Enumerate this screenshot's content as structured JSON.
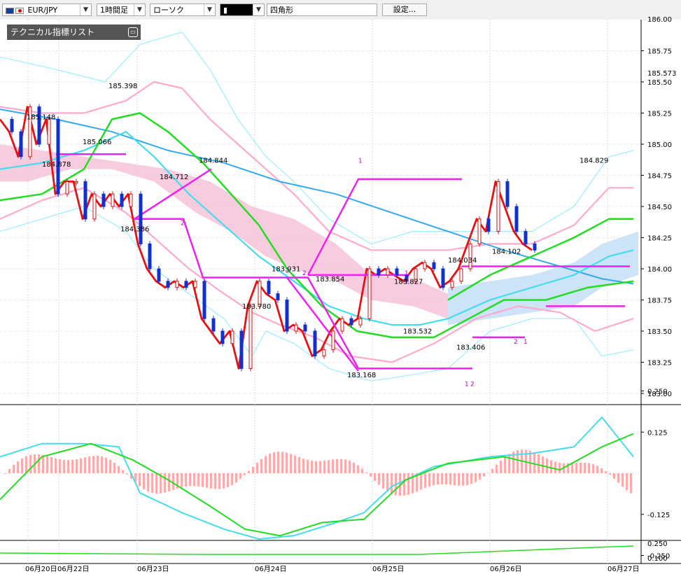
{
  "toolbar": {
    "symbol": "EUR/JPY",
    "timeframe": "1時間足",
    "chart_style": "ローソク",
    "drawing_tool": "四角形",
    "settings_label": "設定..."
  },
  "indicator_list": {
    "label": "テクニカル指標リスト"
  },
  "icons": {
    "symbol_flags": "eu-jp-flag-icon",
    "dropdown": "chevron-down-icon",
    "minimize": "minimize-icon"
  },
  "colors": {
    "price_line": "#e81010",
    "ma_green": "#22dd22",
    "ma_cyan": "#44ddee",
    "ma_blue": "#33aaee",
    "bollinger_outer": "#99eeff",
    "bollinger_inner": "#ffaacc",
    "zigzag": "#ee22ee",
    "cloud_pink": "#f7c6dc",
    "cloud_blue": "#c6e0f7",
    "candle_up": "#d01010",
    "candle_down": "#1030d0",
    "macd_hist": "#ffaaaa"
  },
  "chart_data": {
    "type": "line",
    "symbol": "EUR/JPY",
    "timeframe": "1時間足",
    "y_axis_ticks": [
      "185.75",
      "185.50",
      "185.25",
      "185.00",
      "184.75",
      "184.50",
      "184.25",
      "184.00",
      "183.75",
      "183.50",
      "183.25",
      "183.00"
    ],
    "y_axis_top_partial": "186.00",
    "current_price_marker": "185.573",
    "ylim": [
      183.0,
      186.0
    ],
    "x_axis_labels": [
      "06月20日",
      "06月22日",
      "06月23日",
      "06月24日",
      "06月25日",
      "06月26日",
      "06月27日"
    ],
    "price_annotations": [
      "185.398",
      "185.148",
      "185.066",
      "184.878",
      "184.844",
      "184.712",
      "184.386",
      "183.931",
      "183.780",
      "183.854",
      "183.827",
      "183.532",
      "183.168",
      "184.034",
      "184.102",
      "183.406",
      "184.829"
    ],
    "zigzag_labels": [
      "1",
      "2",
      "2",
      "2",
      "2",
      "1",
      "2",
      "1",
      "2",
      "1"
    ],
    "price_series": {
      "name": "",
      "values": [
        185.2,
        185.1,
        184.9,
        185.3,
        185.0,
        185.2,
        184.6,
        184.7,
        184.7,
        184.4,
        184.6,
        184.5,
        184.6,
        184.5,
        184.6,
        184.2,
        184.0,
        183.9,
        183.85,
        183.9,
        183.85,
        183.9,
        183.6,
        183.5,
        183.4,
        183.5,
        183.2,
        183.7,
        183.9,
        183.8,
        183.75,
        183.5,
        183.55,
        183.5,
        183.3,
        183.35,
        183.5,
        183.6,
        183.55,
        183.6,
        184.0,
        183.95,
        184.0,
        183.95,
        183.9,
        184.0,
        184.05,
        184.0,
        183.85,
        183.9,
        184.0,
        184.2,
        184.4,
        184.3,
        184.7,
        184.5,
        184.3,
        184.2,
        184.15
      ]
    },
    "zigzag_series": {
      "name": "",
      "values": [
        184.4,
        184.8,
        184.4,
        183.9,
        183.9,
        183.95,
        183.2,
        184.7,
        183.95,
        184.05
      ]
    },
    "oscillator": {
      "ticks": [
        "0.250",
        "0.125",
        "-0.125",
        "-0.250"
      ],
      "zero": 0,
      "range": [
        -0.3,
        0.3
      ]
    },
    "sub_panel": {
      "ticks": [
        "0.250",
        "0.100"
      ]
    }
  }
}
